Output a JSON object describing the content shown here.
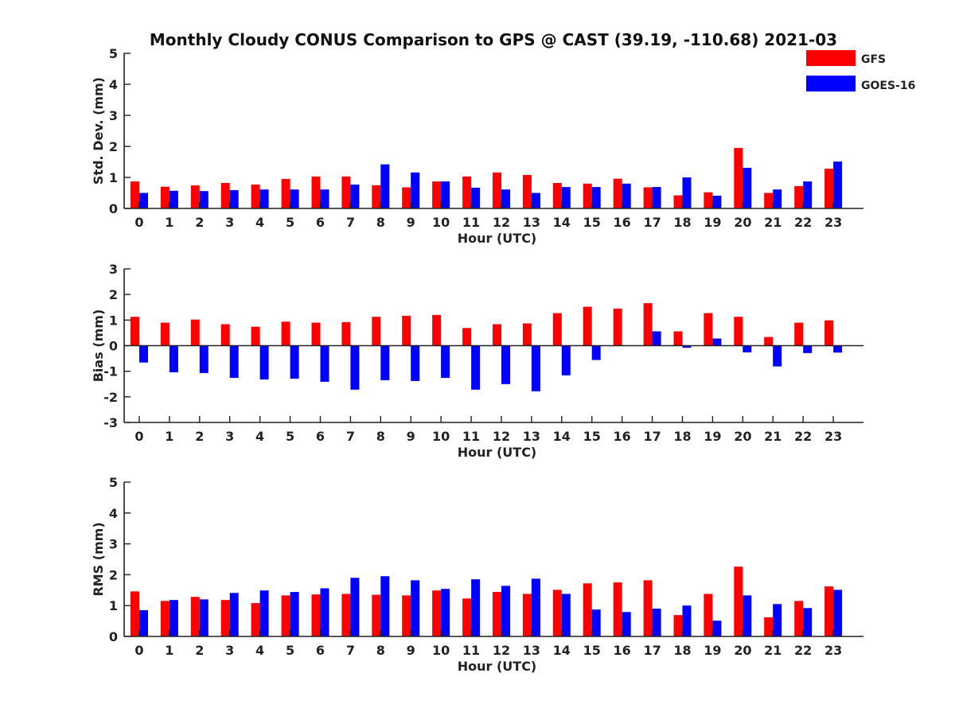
{
  "figure": {
    "title": "Monthly Cloudy CONUS Comparison to GPS @ CAST (39.19, -110.68) 2021-03"
  },
  "legend": {
    "placement": "top-right",
    "entries": [
      {
        "name": "GFS",
        "color": "#ff0000"
      },
      {
        "name": "GOES-16",
        "color": "#0000ff"
      }
    ]
  },
  "chart_data": [
    {
      "type": "bar",
      "xlabel": "Hour (UTC)",
      "ylabel": "Std. Dev. (mm)",
      "ylim": [
        0,
        5
      ],
      "yticks": [
        0,
        1,
        2,
        3,
        4,
        5
      ],
      "categories": [
        "0",
        "1",
        "2",
        "3",
        "4",
        "5",
        "6",
        "7",
        "8",
        "9",
        "10",
        "11",
        "12",
        "13",
        "14",
        "15",
        "16",
        "17",
        "18",
        "19",
        "20",
        "21",
        "22",
        "23"
      ],
      "series": [
        {
          "name": "GFS",
          "color": "#ff0000",
          "values": [
            0.87,
            0.7,
            0.74,
            0.82,
            0.77,
            0.95,
            1.03,
            1.03,
            0.75,
            0.68,
            0.87,
            1.03,
            1.16,
            1.08,
            0.82,
            0.8,
            0.96,
            0.68,
            0.42,
            0.52,
            1.95,
            0.5,
            0.72,
            1.28
          ]
        },
        {
          "name": "GOES-16",
          "color": "#0000ff",
          "values": [
            0.5,
            0.57,
            0.56,
            0.59,
            0.61,
            0.61,
            0.61,
            0.77,
            1.42,
            1.16,
            0.87,
            0.67,
            0.61,
            0.5,
            0.69,
            0.69,
            0.8,
            0.69,
            1.0,
            0.41,
            1.31,
            0.61,
            0.87,
            1.51
          ]
        }
      ]
    },
    {
      "type": "bar",
      "xlabel": "Hour (UTC)",
      "ylabel": "Bias (mm)",
      "ylim": [
        -3,
        3
      ],
      "yticks": [
        -3,
        -2,
        -1,
        0,
        1,
        2,
        3
      ],
      "categories": [
        "0",
        "1",
        "2",
        "3",
        "4",
        "5",
        "6",
        "7",
        "8",
        "9",
        "10",
        "11",
        "12",
        "13",
        "14",
        "15",
        "16",
        "17",
        "18",
        "19",
        "20",
        "21",
        "22",
        "23"
      ],
      "series": [
        {
          "name": "GFS",
          "color": "#ff0000",
          "values": [
            1.13,
            0.9,
            1.02,
            0.84,
            0.74,
            0.94,
            0.9,
            0.92,
            1.13,
            1.17,
            1.2,
            0.69,
            0.84,
            0.87,
            1.27,
            1.52,
            1.45,
            1.66,
            0.56,
            1.27,
            1.13,
            0.34,
            0.9,
            0.99
          ]
        },
        {
          "name": "GOES-16",
          "color": "#0000ff",
          "values": [
            -0.66,
            -1.04,
            -1.07,
            -1.26,
            -1.32,
            -1.29,
            -1.41,
            -1.72,
            -1.35,
            -1.38,
            -1.26,
            -1.72,
            -1.5,
            -1.78,
            -1.16,
            -0.56,
            0.0,
            0.56,
            -0.08,
            0.28,
            -0.26,
            -0.81,
            -0.29,
            -0.27
          ]
        }
      ]
    },
    {
      "type": "bar",
      "xlabel": "Hour (UTC)",
      "ylabel": "RMS (mm)",
      "ylim": [
        0,
        5
      ],
      "yticks": [
        0,
        1,
        2,
        3,
        4,
        5
      ],
      "categories": [
        "0",
        "1",
        "2",
        "3",
        "4",
        "5",
        "6",
        "7",
        "8",
        "9",
        "10",
        "11",
        "12",
        "13",
        "14",
        "15",
        "16",
        "17",
        "18",
        "19",
        "20",
        "21",
        "22",
        "23"
      ],
      "series": [
        {
          "name": "GFS",
          "color": "#ff0000",
          "values": [
            1.46,
            1.15,
            1.28,
            1.18,
            1.08,
            1.33,
            1.36,
            1.38,
            1.35,
            1.33,
            1.49,
            1.23,
            1.44,
            1.38,
            1.51,
            1.72,
            1.75,
            1.82,
            0.69,
            1.38,
            2.26,
            0.62,
            1.15,
            1.62
          ]
        },
        {
          "name": "GOES-16",
          "color": "#0000ff",
          "values": [
            0.85,
            1.18,
            1.2,
            1.41,
            1.49,
            1.44,
            1.56,
            1.9,
            1.95,
            1.82,
            1.54,
            1.85,
            1.64,
            1.87,
            1.38,
            0.87,
            0.79,
            0.9,
            1.0,
            0.51,
            1.33,
            1.05,
            0.92,
            1.51
          ]
        }
      ]
    }
  ]
}
